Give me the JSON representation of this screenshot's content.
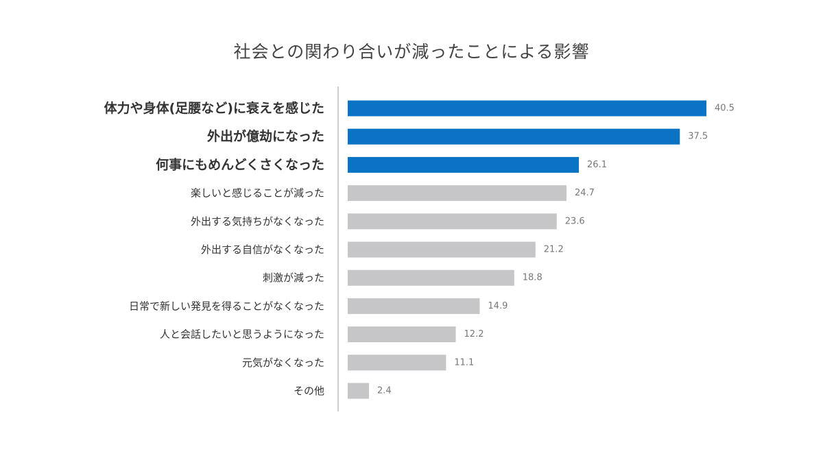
{
  "chart_data": {
    "type": "bar",
    "orientation": "horizontal",
    "title": "社会との関わり合いが減ったことによる影響",
    "categories": [
      "体力や身体(足腰など)に衰えを感じた",
      "外出が億劫になった",
      "何事にもめんどくさくなった",
      "楽しいと感じることが減った",
      "外出する気持ちがなくなった",
      "外出する自信がなくなった",
      "刺激が減った",
      "日常で新しい発見を得ることがなくなった",
      "人と会話したいと思うようになった",
      "元気がなくなった",
      "その他"
    ],
    "values": [
      40.5,
      37.5,
      26.1,
      24.7,
      23.6,
      21.2,
      18.8,
      14.9,
      12.2,
      11.1,
      2.4
    ],
    "value_labels": [
      "40.5",
      "37.5",
      "26.1",
      "24.7",
      "23.6",
      "21.2",
      "18.8",
      "14.9",
      "12.2",
      "11.1",
      "2.4"
    ],
    "highlighted": [
      true,
      true,
      true,
      false,
      false,
      false,
      false,
      false,
      false,
      false,
      false
    ],
    "xlim": [
      0,
      40.5
    ],
    "xlabel": "",
    "ylabel": "",
    "grid": false,
    "legend": "none",
    "colors": {
      "highlight": "#0a73c4",
      "normal": "#c6c6c8",
      "axis": "#bdbdbd",
      "highlight_text": "#0a73c4",
      "normal_text": "#333333",
      "value_text": "#777777"
    }
  }
}
